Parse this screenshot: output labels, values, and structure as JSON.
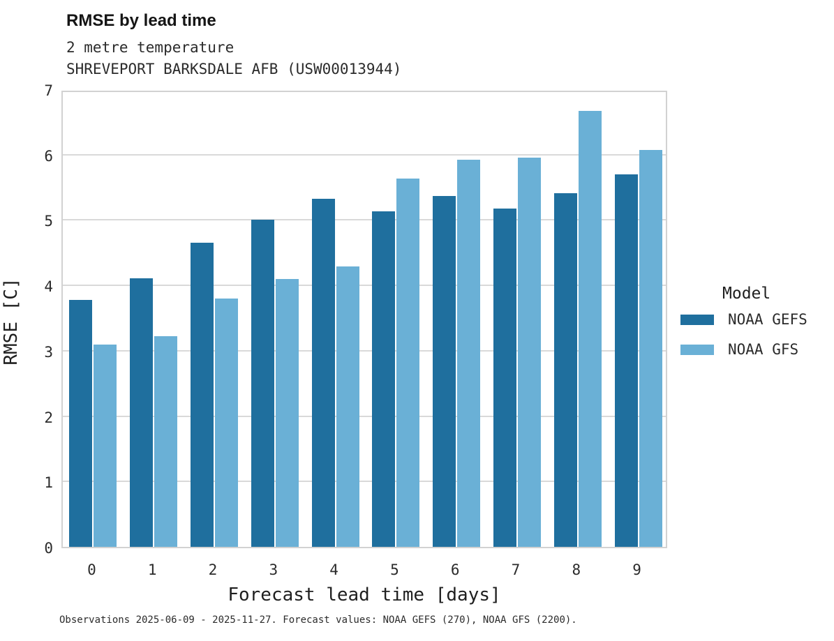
{
  "title": "RMSE by lead time",
  "subtitle_line1": "2 metre temperature",
  "subtitle_line2": "SHREVEPORT BARKSDALE AFB (USW00013944)",
  "caption": "Observations 2025-06-09 - 2025-11-27. Forecast values: NOAA GEFS (270), NOAA GFS (2200).",
  "chart_data": {
    "type": "bar",
    "title": "RMSE by lead time",
    "subtitle": "2 metre temperature — SHREVEPORT BARKSDALE AFB (USW00013944)",
    "categories": [
      "0",
      "1",
      "2",
      "3",
      "4",
      "5",
      "6",
      "7",
      "8",
      "9"
    ],
    "series": [
      {
        "name": "NOAA GEFS",
        "color": "#1f6f9e",
        "values": [
          3.78,
          4.11,
          4.65,
          5.0,
          5.33,
          5.13,
          5.37,
          5.18,
          5.41,
          5.7
        ]
      },
      {
        "name": "NOAA GFS",
        "color": "#6ab0d6",
        "values": [
          3.1,
          3.22,
          3.8,
          4.1,
          4.29,
          5.63,
          5.92,
          5.96,
          6.67,
          6.07
        ]
      }
    ],
    "xlabel": "Forecast lead time [days]",
    "ylabel": "RMSE [C]",
    "ylim": [
      0,
      7
    ],
    "yticks": [
      0,
      1,
      2,
      3,
      4,
      5,
      6,
      7
    ],
    "grid": "horizontal",
    "legend_title": "Model",
    "legend_position": "right"
  },
  "colors": {
    "noaa_gefs": "#1f6f9e",
    "noaa_gfs": "#6ab0d6",
    "gridline": "#d9d9d9",
    "panel_border": "#d2d2d2"
  }
}
